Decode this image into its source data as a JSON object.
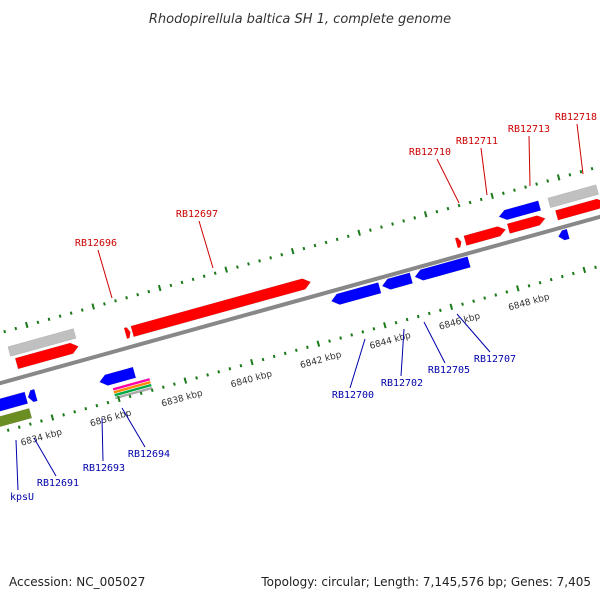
{
  "title": "Rhodopirellula baltica SH 1, complete genome",
  "footer": {
    "accession": "Accession: NC_005027",
    "summary": "Topology: circular; Length: 7,145,576 bp; Genes: 7,405"
  },
  "colors": {
    "forward_gene": "#ff0000",
    "reverse_gene": "#0000ff",
    "forward_label": "#cc0000",
    "reverse_label": "#0000aa",
    "tick": "#1a7a1a",
    "backbone": "#888888",
    "gray_feature": "#c0c0c0",
    "olive_feature": "#6b8e23"
  },
  "scale": {
    "labels": [
      "6834 kbp",
      "6836 kbp",
      "6838 kbp",
      "6840 kbp",
      "6842 kbp",
      "6844 kbp",
      "6846 kbp",
      "6848 kbp"
    ]
  },
  "forward_genes": [
    {
      "label": "RB12696"
    },
    {
      "label": "RB12697"
    },
    {
      "label": "RB12710"
    },
    {
      "label": "RB12711"
    },
    {
      "label": "RB12713"
    },
    {
      "label": "RB12718"
    }
  ],
  "reverse_genes": [
    {
      "label": "kpsU"
    },
    {
      "label": "RB12691"
    },
    {
      "label": "RB12693"
    },
    {
      "label": "RB12694"
    },
    {
      "label": "RB12700"
    },
    {
      "label": "RB12702"
    },
    {
      "label": "RB12705"
    },
    {
      "label": "RB12707"
    }
  ]
}
